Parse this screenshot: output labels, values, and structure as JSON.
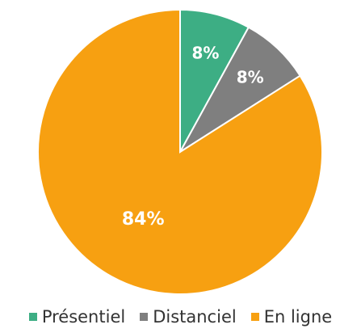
{
  "chart_data": {
    "type": "pie",
    "categories": [
      "Présentiel",
      "Distanciel",
      "En ligne"
    ],
    "values": [
      8,
      8,
      84
    ],
    "labels": [
      "8%",
      "8%",
      "84%"
    ],
    "colors": [
      "#3dae84",
      "#7f7f7f",
      "#f7a011"
    ],
    "legend_position": "bottom",
    "title": ""
  },
  "legend": {
    "items": [
      {
        "label": "Présentiel",
        "color": "#3dae84"
      },
      {
        "label": "Distanciel",
        "color": "#7f7f7f"
      },
      {
        "label": "En ligne",
        "color": "#f7a011"
      }
    ]
  }
}
